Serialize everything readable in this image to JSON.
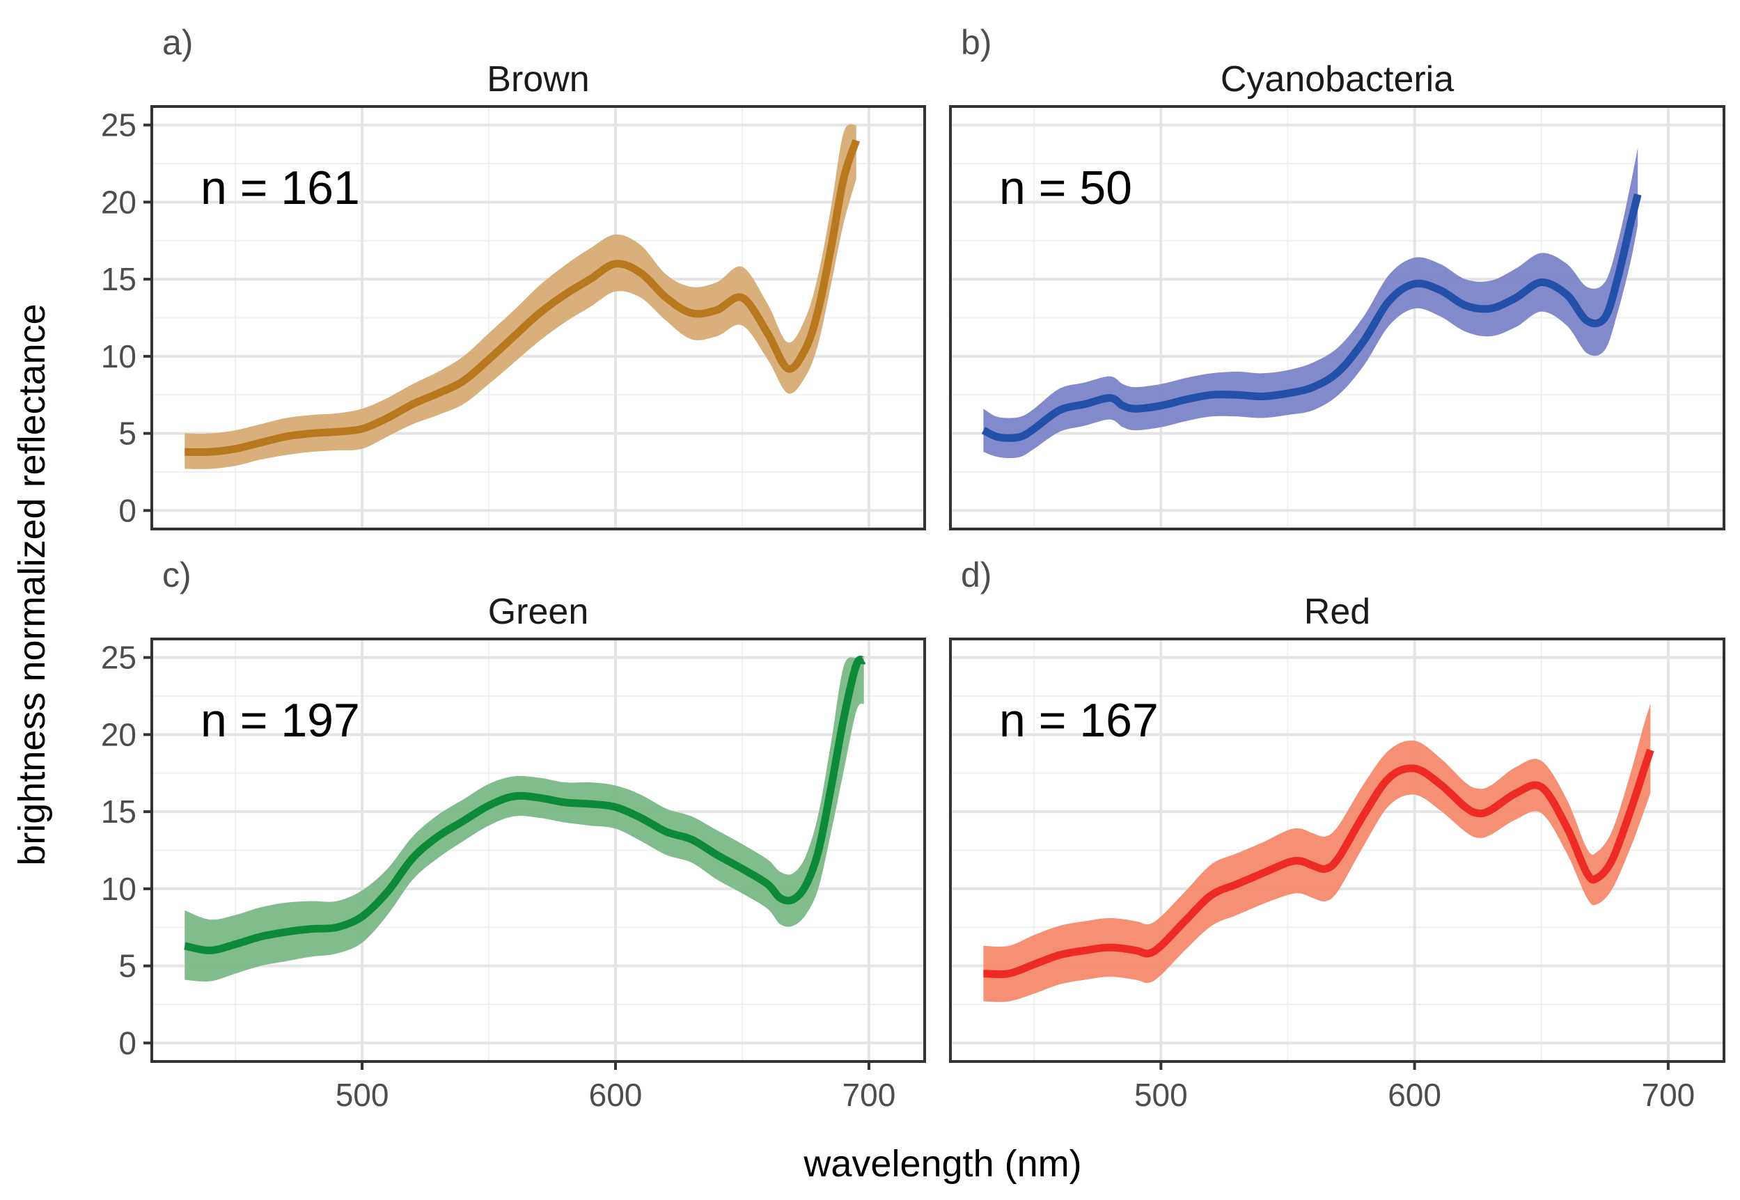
{
  "figure": {
    "xlabel": "wavelength (nm)",
    "ylabel": "brightness normalized reflectance"
  },
  "chart_data": [
    {
      "type": "line",
      "panel_label": "a)",
      "title": "Brown",
      "n_label": "n = 161",
      "color": "#b8781e",
      "band_color": "#d7ab74",
      "xlim": [
        417,
        722
      ],
      "ylim": [
        -1.2,
        26.2
      ],
      "x_ticks": [
        500,
        600,
        700
      ],
      "y_ticks": [
        0,
        5,
        10,
        15,
        20,
        25
      ],
      "series": [
        {
          "name": "Brown",
          "x": [
            430,
            440,
            450,
            460,
            470,
            480,
            490,
            500,
            510,
            520,
            530,
            540,
            550,
            560,
            570,
            580,
            590,
            600,
            610,
            620,
            630,
            640,
            650,
            660,
            668,
            675,
            680,
            685,
            690,
            695
          ],
          "y": [
            3.8,
            3.8,
            4.0,
            4.4,
            4.8,
            5.0,
            5.1,
            5.3,
            6.0,
            6.9,
            7.6,
            8.4,
            9.8,
            11.3,
            12.8,
            14.0,
            15.0,
            16.0,
            15.4,
            13.8,
            12.8,
            13.0,
            13.8,
            11.5,
            9.2,
            10.5,
            13.0,
            17.0,
            21.5,
            24.0
          ],
          "lower": [
            2.7,
            2.7,
            2.9,
            3.3,
            3.6,
            3.8,
            3.9,
            4.0,
            4.8,
            5.6,
            6.2,
            6.9,
            8.2,
            9.6,
            11.0,
            12.2,
            13.2,
            14.2,
            13.8,
            12.3,
            11.1,
            11.3,
            12.0,
            9.8,
            7.6,
            8.7,
            10.8,
            14.6,
            18.6,
            21.5
          ],
          "upper": [
            5.0,
            5.0,
            5.2,
            5.6,
            6.0,
            6.2,
            6.3,
            6.6,
            7.3,
            8.2,
            9.0,
            10.0,
            11.5,
            13.0,
            14.6,
            15.9,
            17.0,
            17.9,
            17.2,
            15.3,
            14.5,
            14.8,
            15.8,
            13.4,
            10.9,
            12.5,
            15.3,
            19.6,
            24.5,
            25.0
          ]
        }
      ]
    },
    {
      "type": "line",
      "panel_label": "b)",
      "title": "Cyanobacteria",
      "n_label": "n = 50",
      "color": "#2350a8",
      "band_color": "#7b84c9",
      "xlim": [
        417,
        722
      ],
      "ylim": [
        -1.2,
        26.2
      ],
      "x_ticks": [
        500,
        600,
        700
      ],
      "y_ticks": [
        0,
        5,
        10,
        15,
        20,
        25
      ],
      "series": [
        {
          "name": "Cyanobacteria",
          "x": [
            430,
            435,
            440,
            445,
            450,
            460,
            470,
            480,
            485,
            490,
            500,
            510,
            520,
            530,
            540,
            550,
            560,
            570,
            580,
            590,
            600,
            610,
            620,
            630,
            640,
            650,
            660,
            668,
            675,
            680,
            685,
            688
          ],
          "y": [
            5.2,
            4.8,
            4.7,
            4.8,
            5.3,
            6.5,
            6.9,
            7.3,
            6.8,
            6.6,
            6.8,
            7.2,
            7.5,
            7.5,
            7.4,
            7.6,
            8.0,
            9.0,
            11.0,
            13.6,
            14.7,
            14.3,
            13.3,
            13.1,
            13.8,
            14.8,
            14.0,
            12.3,
            12.5,
            15.0,
            18.5,
            20.5
          ],
          "lower": [
            3.8,
            3.5,
            3.4,
            3.5,
            4.0,
            5.1,
            5.5,
            5.9,
            5.4,
            5.2,
            5.4,
            5.8,
            6.1,
            6.1,
            6.0,
            6.2,
            6.5,
            7.5,
            9.4,
            12.0,
            13.1,
            12.6,
            11.6,
            11.3,
            11.9,
            12.9,
            12.0,
            10.2,
            10.4,
            12.8,
            16.0,
            18.5
          ],
          "upper": [
            6.6,
            6.1,
            6.0,
            6.1,
            6.6,
            7.9,
            8.3,
            8.7,
            8.2,
            8.0,
            8.2,
            8.6,
            8.9,
            9.0,
            8.9,
            9.1,
            9.6,
            10.6,
            12.6,
            15.3,
            16.4,
            16.0,
            15.0,
            14.9,
            15.7,
            16.7,
            16.0,
            14.5,
            14.8,
            17.3,
            21.0,
            23.5
          ]
        }
      ]
    },
    {
      "type": "line",
      "panel_label": "c)",
      "title": "Green",
      "n_label": "n = 197",
      "color": "#0d8a38",
      "band_color": "#7ab886",
      "xlim": [
        417,
        722
      ],
      "ylim": [
        -1.2,
        26.2
      ],
      "x_ticks": [
        500,
        600,
        700
      ],
      "y_ticks": [
        0,
        5,
        10,
        15,
        20,
        25
      ],
      "series": [
        {
          "name": "Green",
          "x": [
            430,
            440,
            450,
            460,
            470,
            480,
            490,
            500,
            510,
            520,
            530,
            540,
            550,
            560,
            570,
            580,
            590,
            600,
            610,
            620,
            630,
            640,
            650,
            660,
            665,
            670,
            675,
            680,
            685,
            690,
            695,
            698
          ],
          "y": [
            6.3,
            6.0,
            6.4,
            6.9,
            7.2,
            7.4,
            7.5,
            8.2,
            9.8,
            12.0,
            13.4,
            14.4,
            15.4,
            16.0,
            15.9,
            15.6,
            15.5,
            15.3,
            14.6,
            13.7,
            13.2,
            12.2,
            11.3,
            10.3,
            9.4,
            9.3,
            10.2,
            12.4,
            16.5,
            21.0,
            24.5,
            24.8
          ],
          "lower": [
            4.1,
            4.0,
            4.5,
            5.0,
            5.3,
            5.6,
            5.8,
            6.5,
            8.3,
            10.6,
            12.0,
            13.1,
            14.1,
            14.7,
            14.6,
            14.3,
            14.1,
            13.9,
            13.1,
            12.2,
            11.7,
            10.6,
            9.7,
            8.7,
            7.7,
            7.6,
            8.3,
            10.0,
            13.6,
            17.6,
            21.5,
            22.0
          ],
          "upper": [
            8.6,
            8.0,
            8.3,
            8.8,
            9.1,
            9.2,
            9.2,
            9.9,
            11.3,
            13.4,
            14.8,
            15.8,
            16.8,
            17.3,
            17.2,
            16.9,
            16.9,
            16.7,
            16.1,
            15.2,
            14.7,
            13.8,
            12.9,
            11.9,
            11.1,
            11.0,
            12.1,
            14.8,
            19.4,
            24.4,
            25.0,
            25.0
          ]
        }
      ]
    },
    {
      "type": "line",
      "panel_label": "d)",
      "title": "Red",
      "n_label": "n = 167",
      "color": "#ee2a24",
      "band_color": "#f58a6e",
      "xlim": [
        417,
        722
      ],
      "ylim": [
        -1.2,
        26.2
      ],
      "x_ticks": [
        500,
        600,
        700
      ],
      "y_ticks": [
        0,
        5,
        10,
        15,
        20,
        25
      ],
      "series": [
        {
          "name": "Red",
          "x": [
            430,
            440,
            450,
            460,
            470,
            480,
            490,
            495,
            500,
            510,
            520,
            530,
            540,
            550,
            555,
            560,
            565,
            570,
            580,
            590,
            600,
            610,
            620,
            625,
            630,
            640,
            650,
            660,
            668,
            672,
            678,
            685,
            690,
            693
          ],
          "y": [
            4.5,
            4.5,
            5.1,
            5.7,
            6.0,
            6.2,
            6.0,
            5.8,
            6.3,
            8.0,
            9.6,
            10.3,
            11.0,
            11.7,
            11.8,
            11.5,
            11.3,
            12.0,
            14.8,
            17.2,
            17.8,
            16.8,
            15.3,
            14.9,
            15.1,
            16.2,
            16.6,
            14.0,
            11.0,
            10.7,
            11.9,
            15.0,
            17.5,
            19.0
          ],
          "lower": [
            2.7,
            2.7,
            3.2,
            3.8,
            4.1,
            4.3,
            4.1,
            3.9,
            4.4,
            6.1,
            7.6,
            8.3,
            9.0,
            9.6,
            9.7,
            9.4,
            9.2,
            9.9,
            12.8,
            15.4,
            16.1,
            15.1,
            13.7,
            13.3,
            13.5,
            14.5,
            14.9,
            12.3,
            9.4,
            9.0,
            10.0,
            12.6,
            14.8,
            16.2
          ],
          "upper": [
            6.3,
            6.3,
            7.0,
            7.6,
            7.9,
            8.1,
            7.9,
            7.7,
            8.2,
            9.9,
            11.6,
            12.3,
            13.0,
            13.8,
            13.9,
            13.6,
            13.4,
            14.1,
            16.8,
            19.0,
            19.6,
            18.5,
            16.9,
            16.5,
            16.7,
            17.9,
            18.3,
            15.8,
            12.6,
            12.4,
            13.8,
            17.4,
            20.4,
            22.0
          ]
        }
      ]
    }
  ]
}
